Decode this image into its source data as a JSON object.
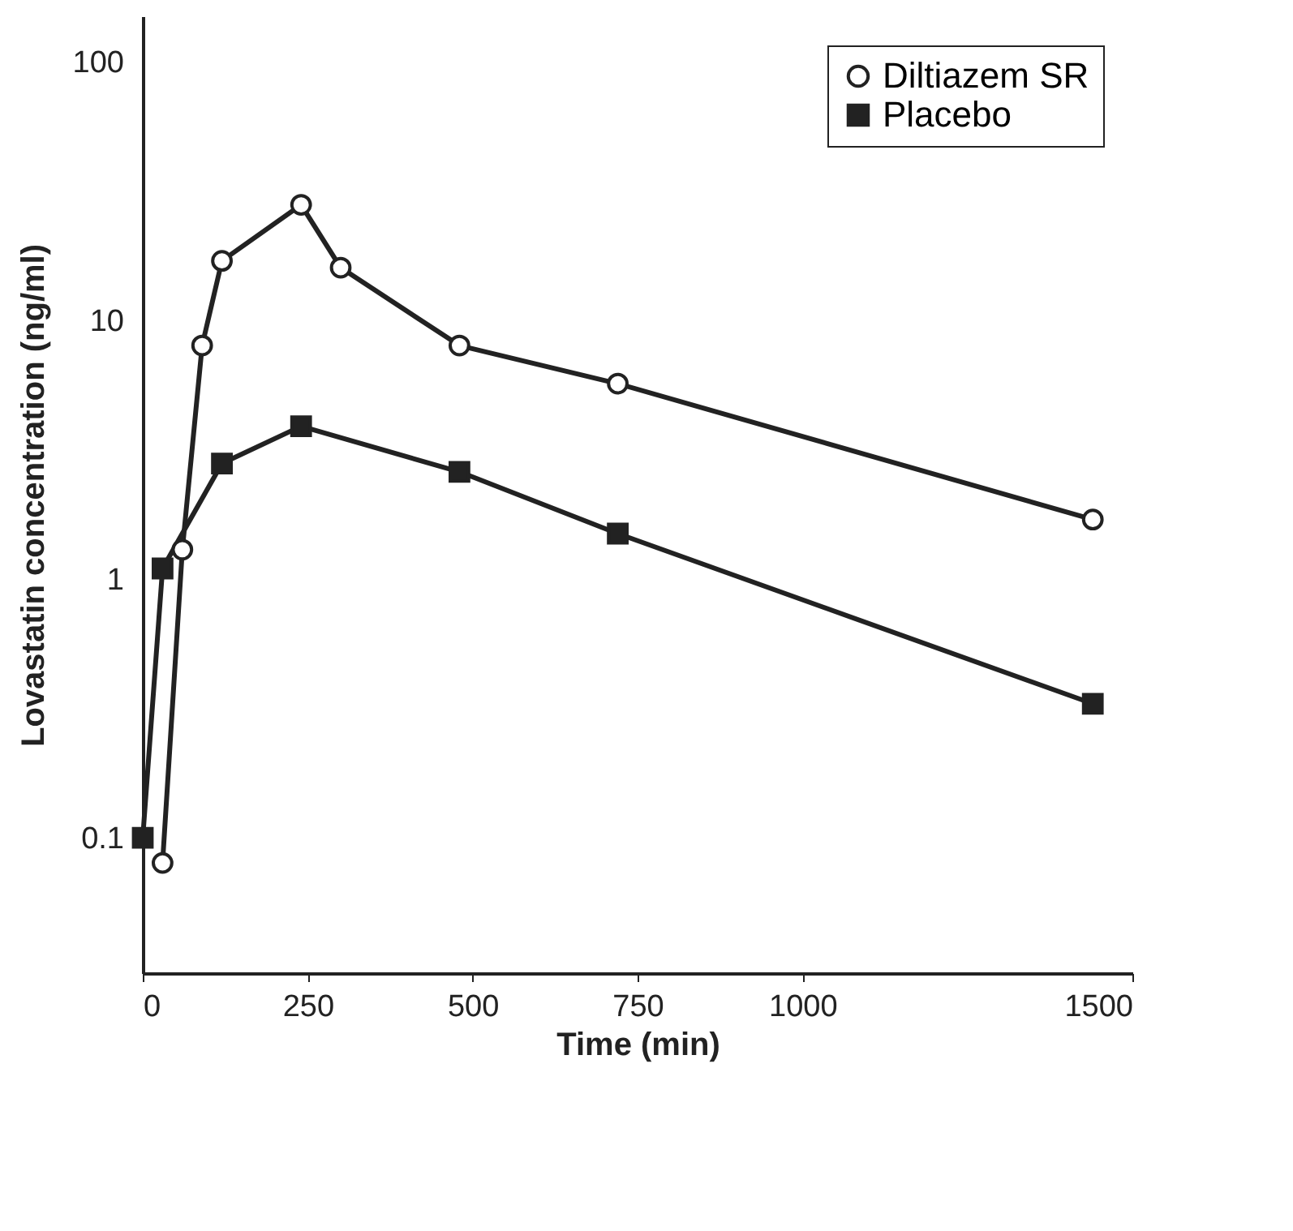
{
  "chart_data": {
    "type": "line",
    "xlabel": "Time (min)",
    "ylabel": "Lovastatin concentration (ng/ml)",
    "log": "y",
    "grid": false,
    "legend": "top right",
    "xlim": [
      0,
      1500
    ],
    "xticks": [
      0,
      250,
      500,
      750,
      1000,
      1500
    ],
    "ylim": [
      0.03,
      150
    ],
    "yticks": [
      0.1,
      1,
      10,
      100
    ],
    "series": [
      {
        "name": "Diltiazem SR",
        "color": "#222222",
        "marker": "circle",
        "x": [
          30,
          60,
          90,
          120,
          240,
          300,
          480,
          720,
          1440
        ],
        "values": [
          0.08,
          1.3,
          8,
          17,
          28,
          16,
          8,
          5.7,
          1.7
        ]
      },
      {
        "name": "Placebo",
        "color": "#222222",
        "marker": "square",
        "x": [
          0,
          30,
          120,
          240,
          480,
          720,
          1440
        ],
        "values": [
          0.1,
          1.1,
          2.8,
          3.9,
          2.6,
          1.5,
          0.33
        ]
      }
    ]
  }
}
